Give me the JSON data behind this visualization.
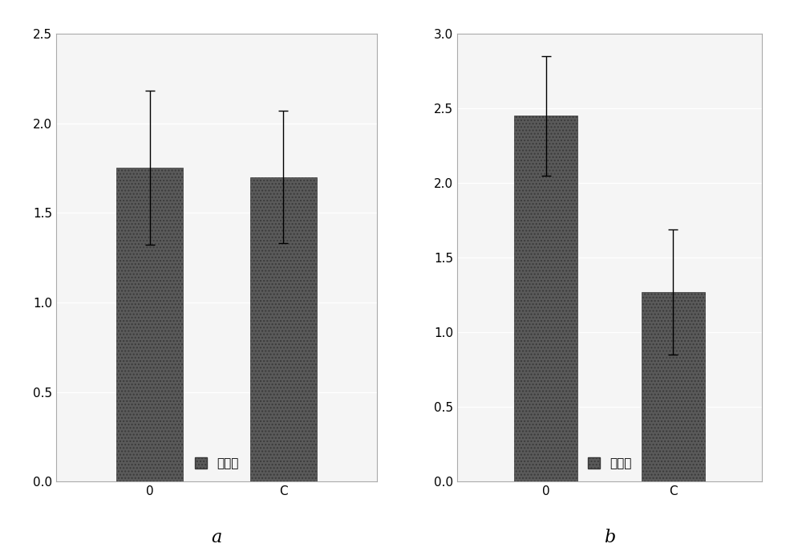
{
  "chart_a": {
    "categories": [
      "0",
      "C"
    ],
    "values": [
      1.75,
      1.7
    ],
    "errors_upper": [
      0.43,
      0.37
    ],
    "errors_lower": [
      0.43,
      0.37
    ],
    "ylim": [
      0,
      2.5
    ],
    "yticks": [
      0,
      0.5,
      1.0,
      1.5,
      2.0,
      2.5
    ],
    "label": "a"
  },
  "chart_b": {
    "categories": [
      "0",
      "C"
    ],
    "values": [
      2.45,
      1.27
    ],
    "errors_upper": [
      0.4,
      0.42
    ],
    "errors_lower": [
      0.4,
      0.42
    ],
    "ylim": [
      0,
      3.0
    ],
    "yticks": [
      0,
      0.5,
      1.0,
      1.5,
      2.0,
      2.5,
      3.0
    ],
    "label": "b"
  },
  "bar_color": "#5a5a5a",
  "bar_hatch": "....",
  "legend_label": "平均数",
  "plot_bg_color": "#f5f5f5",
  "bar_width": 0.5,
  "capsize": 4,
  "grid_color": "#ffffff",
  "label_fontsize": 16,
  "tick_fontsize": 11,
  "legend_fontsize": 11,
  "figure_bg": "#ffffff",
  "spine_color": "#aaaaaa",
  "bar_edge_color": "#3a3a3a"
}
